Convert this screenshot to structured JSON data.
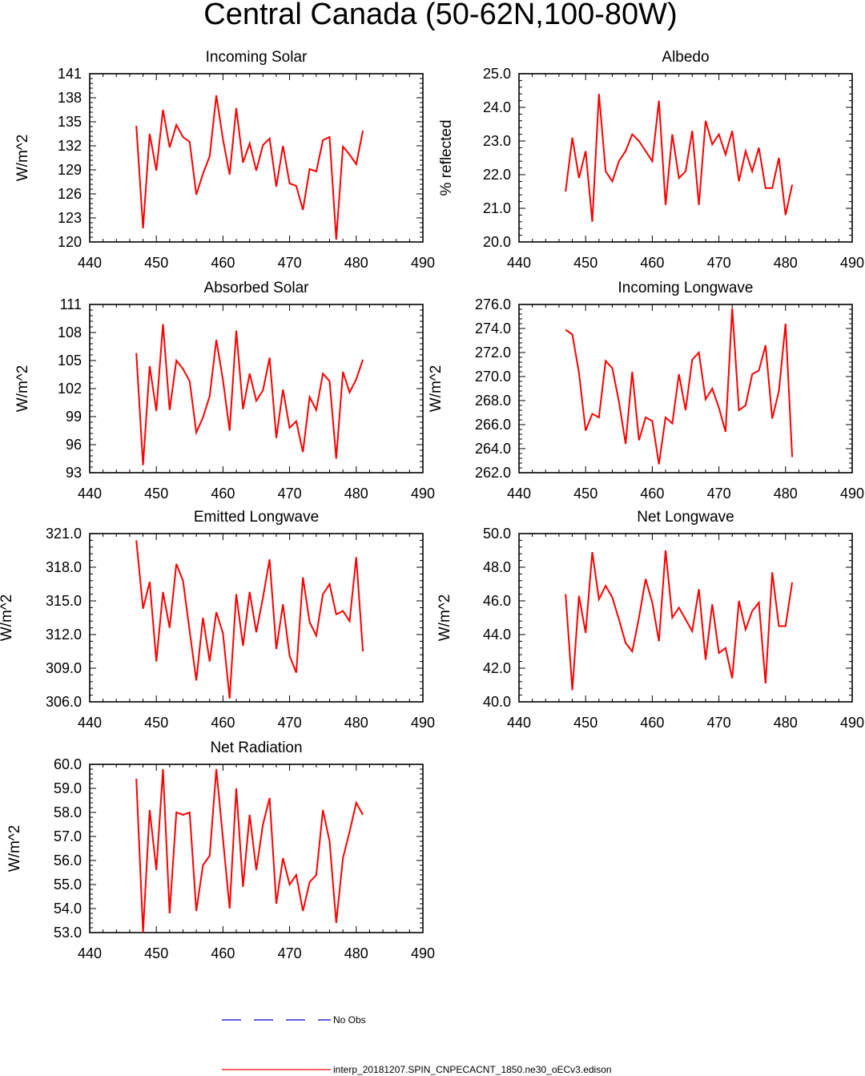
{
  "page": {
    "title": "Central Canada (50-62N,100-80W)"
  },
  "legend": {
    "obs_label": "No Obs",
    "obs_color": "#0000cc",
    "model_label": "interp_20181207.SPIN_CNPECACNT_1850.ne30_oECv3.edison",
    "model_color": "#ff0000"
  },
  "chart_data": [
    {
      "type": "line",
      "title": "Incoming Solar",
      "ylabel": "W/m^2",
      "xlim": [
        440,
        490
      ],
      "ylim": [
        120,
        141
      ],
      "xticks": [
        440,
        450,
        460,
        470,
        480,
        490
      ],
      "yticks": [
        "120",
        "123",
        "126",
        "129",
        "132",
        "135",
        "138",
        "141"
      ],
      "x": [
        447,
        448,
        449,
        450,
        451,
        452,
        453,
        454,
        455,
        456,
        457,
        458,
        459,
        460,
        461,
        462,
        463,
        464,
        465,
        466,
        467,
        468,
        469,
        470,
        471,
        472,
        473,
        474,
        475,
        476,
        477,
        478,
        479,
        480,
        481
      ],
      "series": [
        {
          "values": [
            134.5,
            121.7,
            133.5,
            128.9,
            136.5,
            131.8,
            134.6,
            133.1,
            132.5,
            125.9,
            128.5,
            130.7,
            138.3,
            132.8,
            128.4,
            136.7,
            129.9,
            132.3,
            128.9,
            132.1,
            132.9,
            126.9,
            132.0,
            127.3,
            127.0,
            124.0,
            129.1,
            128.8,
            132.7,
            133.1,
            120.3,
            131.9,
            130.9,
            129.7,
            133.9
          ]
        }
      ]
    },
    {
      "type": "line",
      "title": "Albedo",
      "ylabel": "% reflected",
      "xlim": [
        440,
        490
      ],
      "ylim": [
        20.0,
        25.0
      ],
      "xticks": [
        440,
        450,
        460,
        470,
        480,
        490
      ],
      "yticks": [
        "20.0",
        "21.0",
        "22.0",
        "23.0",
        "24.0",
        "25.0"
      ],
      "x": [
        447,
        448,
        449,
        450,
        451,
        452,
        453,
        454,
        455,
        456,
        457,
        458,
        459,
        460,
        461,
        462,
        463,
        464,
        465,
        466,
        467,
        468,
        469,
        470,
        471,
        472,
        473,
        474,
        475,
        476,
        477,
        478,
        479,
        480,
        481
      ],
      "series": [
        {
          "values": [
            21.5,
            23.1,
            21.9,
            22.7,
            20.6,
            24.4,
            22.1,
            21.8,
            22.4,
            22.7,
            23.2,
            23.0,
            22.7,
            22.4,
            24.2,
            21.1,
            23.2,
            21.9,
            22.1,
            23.3,
            21.1,
            23.6,
            22.9,
            23.2,
            22.6,
            23.3,
            21.8,
            22.7,
            22.1,
            22.8,
            21.6,
            21.6,
            22.5,
            20.8,
            21.7
          ]
        }
      ]
    },
    {
      "type": "line",
      "title": "Absorbed Solar",
      "ylabel": "W/m^2",
      "xlim": [
        440,
        490
      ],
      "ylim": [
        93,
        111
      ],
      "xticks": [
        440,
        450,
        460,
        470,
        480,
        490
      ],
      "yticks": [
        "93",
        "96",
        "99",
        "102",
        "105",
        "108",
        "111"
      ],
      "x": [
        447,
        448,
        449,
        450,
        451,
        452,
        453,
        454,
        455,
        456,
        457,
        458,
        459,
        460,
        461,
        462,
        463,
        464,
        465,
        466,
        467,
        468,
        469,
        470,
        471,
        472,
        473,
        474,
        475,
        476,
        477,
        478,
        479,
        480,
        481
      ],
      "series": [
        {
          "values": [
            105.8,
            93.8,
            104.4,
            99.6,
            108.9,
            99.7,
            105.0,
            104.1,
            102.8,
            97.3,
            98.9,
            101.2,
            107.2,
            102.9,
            97.5,
            108.2,
            99.8,
            103.6,
            100.7,
            101.8,
            105.3,
            96.7,
            101.9,
            97.8,
            98.5,
            95.2,
            101.1,
            99.7,
            103.6,
            102.8,
            94.5,
            103.8,
            101.6,
            103.0,
            105.1
          ]
        }
      ]
    },
    {
      "type": "line",
      "title": "Incoming Longwave",
      "ylabel": "W/m^2",
      "xlim": [
        440,
        490
      ],
      "ylim": [
        262.0,
        276.0
      ],
      "xticks": [
        440,
        450,
        460,
        470,
        480,
        490
      ],
      "yticks": [
        "262.0",
        "264.0",
        "266.0",
        "268.0",
        "270.0",
        "272.0",
        "274.0",
        "276.0"
      ],
      "x": [
        447,
        448,
        449,
        450,
        451,
        452,
        453,
        454,
        455,
        456,
        457,
        458,
        459,
        460,
        461,
        462,
        463,
        464,
        465,
        466,
        467,
        468,
        469,
        470,
        471,
        472,
        473,
        474,
        475,
        476,
        477,
        478,
        479,
        480,
        481
      ],
      "series": [
        {
          "values": [
            273.9,
            273.5,
            270.3,
            265.5,
            266.9,
            266.6,
            271.3,
            270.7,
            267.9,
            264.4,
            270.4,
            264.7,
            266.6,
            266.3,
            262.7,
            266.6,
            266.1,
            270.2,
            267.2,
            271.4,
            272.0,
            268.1,
            269.0,
            267.4,
            265.4,
            275.7,
            267.2,
            267.6,
            270.2,
            270.5,
            272.6,
            266.5,
            268.8,
            274.4,
            263.3
          ]
        }
      ]
    },
    {
      "type": "line",
      "title": "Emitted Longwave",
      "ylabel": "W/m^2",
      "xlim": [
        440,
        490
      ],
      "ylim": [
        306.0,
        321.0
      ],
      "xticks": [
        440,
        450,
        460,
        470,
        480,
        490
      ],
      "yticks": [
        "306.0",
        "309.0",
        "312.0",
        "315.0",
        "318.0",
        "321.0"
      ],
      "x": [
        447,
        448,
        449,
        450,
        451,
        452,
        453,
        454,
        455,
        456,
        457,
        458,
        459,
        460,
        461,
        462,
        463,
        464,
        465,
        466,
        467,
        468,
        469,
        470,
        471,
        472,
        473,
        474,
        475,
        476,
        477,
        478,
        479,
        480,
        481
      ],
      "series": [
        {
          "values": [
            320.4,
            314.3,
            316.7,
            309.6,
            315.8,
            312.6,
            318.3,
            316.8,
            312.3,
            307.9,
            313.5,
            309.6,
            314.0,
            312.1,
            306.3,
            315.6,
            311.0,
            315.8,
            312.2,
            315.3,
            318.7,
            310.7,
            314.7,
            310.1,
            308.6,
            317.1,
            313.1,
            311.9,
            315.6,
            316.5,
            313.8,
            314.1,
            313.2,
            318.9,
            310.5
          ]
        }
      ]
    },
    {
      "type": "line",
      "title": "Net Longwave",
      "ylabel": "W/m^2",
      "xlim": [
        440,
        490
      ],
      "ylim": [
        40.0,
        50.0
      ],
      "xticks": [
        440,
        450,
        460,
        470,
        480,
        490
      ],
      "yticks": [
        "40.0",
        "42.0",
        "44.0",
        "46.0",
        "48.0",
        "50.0"
      ],
      "x": [
        447,
        448,
        449,
        450,
        451,
        452,
        453,
        454,
        455,
        456,
        457,
        458,
        459,
        460,
        461,
        462,
        463,
        464,
        465,
        466,
        467,
        468,
        469,
        470,
        471,
        472,
        473,
        474,
        475,
        476,
        477,
        478,
        479,
        480,
        481
      ],
      "series": [
        {
          "values": [
            46.4,
            40.7,
            46.3,
            44.1,
            48.9,
            46.1,
            46.9,
            46.2,
            44.9,
            43.5,
            43.0,
            45.0,
            47.3,
            45.9,
            43.6,
            49.0,
            45.0,
            45.6,
            44.9,
            44.2,
            46.7,
            42.5,
            45.8,
            42.9,
            43.2,
            41.4,
            46.0,
            44.3,
            45.4,
            45.9,
            41.1,
            47.7,
            44.5,
            44.5,
            47.1
          ]
        }
      ]
    },
    {
      "type": "line",
      "title": "Net Radiation",
      "ylabel": "W/m^2",
      "xlim": [
        440,
        490
      ],
      "ylim": [
        53.0,
        60.0
      ],
      "xticks": [
        440,
        450,
        460,
        470,
        480,
        490
      ],
      "yticks": [
        "53.0",
        "54.0",
        "55.0",
        "56.0",
        "57.0",
        "58.0",
        "59.0",
        "60.0"
      ],
      "x": [
        447,
        448,
        449,
        450,
        451,
        452,
        453,
        454,
        455,
        456,
        457,
        458,
        459,
        460,
        461,
        462,
        463,
        464,
        465,
        466,
        467,
        468,
        469,
        470,
        471,
        472,
        473,
        474,
        475,
        476,
        477,
        478,
        479,
        480,
        481
      ],
      "series": [
        {
          "values": [
            59.4,
            53.0,
            58.1,
            55.6,
            59.8,
            53.8,
            58.0,
            57.9,
            58.0,
            53.9,
            55.8,
            56.2,
            59.8,
            56.9,
            54.0,
            59.0,
            54.9,
            57.9,
            55.6,
            57.5,
            58.6,
            54.2,
            56.1,
            55.0,
            55.4,
            53.9,
            55.1,
            55.4,
            58.1,
            56.8,
            53.4,
            56.1,
            57.2,
            58.4,
            57.9
          ]
        }
      ]
    }
  ]
}
